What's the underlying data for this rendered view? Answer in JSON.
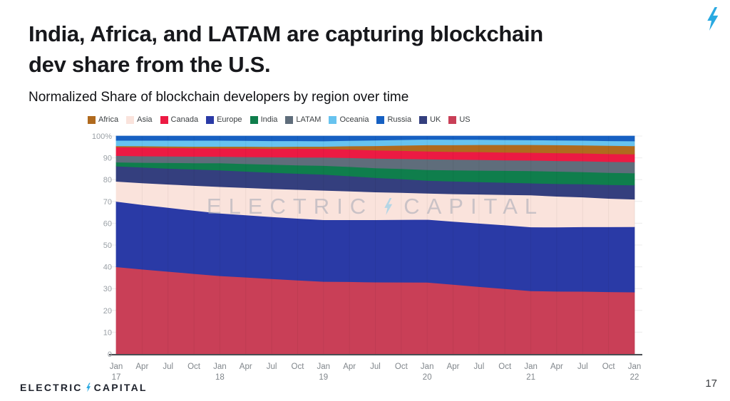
{
  "slide": {
    "title_line1": "India, Africa, and LATAM are capturing blockchain",
    "title_line2": "dev share from the U.S.",
    "subtitle": "Normalized Share of blockchain developers by region over time",
    "watermark_left": "ELECTRIC",
    "watermark_right": "CAPITAL",
    "logo_left": "ELECTRIC",
    "logo_right": "CAPITAL",
    "page_number": "17",
    "accent_bolt_color": "#29a9e1"
  },
  "chart_data": {
    "type": "area",
    "stacked": true,
    "normalized": true,
    "ylabel": "",
    "xlabel": "",
    "y_range": [
      0,
      100
    ],
    "grid": true,
    "legend_position": "top",
    "y_tick_labels": [
      "0",
      "10",
      "20",
      "30",
      "40",
      "50",
      "60",
      "70",
      "80",
      "90",
      "100%"
    ],
    "x_labels": [
      {
        "month": "Jan",
        "year": "17"
      },
      {
        "month": "Apr"
      },
      {
        "month": "Jul"
      },
      {
        "month": "Oct"
      },
      {
        "month": "Jan",
        "year": "18"
      },
      {
        "month": "Apr"
      },
      {
        "month": "Jul"
      },
      {
        "month": "Oct"
      },
      {
        "month": "Jan",
        "year": "19"
      },
      {
        "month": "Apr"
      },
      {
        "month": "Jul"
      },
      {
        "month": "Oct"
      },
      {
        "month": "Jan",
        "year": "20"
      },
      {
        "month": "Apr"
      },
      {
        "month": "Jul"
      },
      {
        "month": "Oct"
      },
      {
        "month": "Jan",
        "year": "21"
      },
      {
        "month": "Apr"
      },
      {
        "month": "Jul"
      },
      {
        "month": "Oct"
      },
      {
        "month": "Jan",
        "year": "22"
      }
    ],
    "legend_order": [
      "Africa",
      "Asia",
      "Canada",
      "Europe",
      "India",
      "LATAM",
      "Oceania",
      "Russia",
      "UK",
      "US"
    ],
    "series_bottom_to_top": [
      {
        "name": "US",
        "color": "#c93f57",
        "values": [
          40,
          39,
          38,
          37,
          36,
          35.4,
          34.7,
          34.1,
          33.4,
          33.3,
          33.1,
          33,
          32.9,
          32,
          31,
          30.1,
          29.1,
          28.9,
          28.8,
          28.6,
          28.4
        ]
      },
      {
        "name": "Europe",
        "color": "#2a3aa6",
        "values": [
          30,
          29.7,
          29.4,
          29.1,
          28.8,
          28.7,
          28.6,
          28.5,
          28.4,
          28.5,
          28.7,
          28.8,
          28.9,
          29,
          29.2,
          29.3,
          29.4,
          29.6,
          29.7,
          29.9,
          30
        ]
      },
      {
        "name": "Asia",
        "color": "#fae3dc",
        "values": [
          9.2,
          10,
          10.7,
          11.5,
          12.2,
          12.6,
          12.9,
          13.3,
          13.6,
          13.2,
          12.8,
          12.4,
          12,
          12.7,
          13.4,
          14,
          14.7,
          14.2,
          13.7,
          13.1,
          12.6
        ]
      },
      {
        "name": "UK",
        "color": "#343f7e",
        "values": [
          7,
          7.2,
          7.3,
          7.5,
          7.6,
          7.5,
          7.5,
          7.4,
          7.3,
          7,
          6.6,
          6.3,
          5.9,
          5.8,
          5.7,
          5.6,
          5.5,
          5.8,
          6,
          6.3,
          6.5
        ]
      },
      {
        "name": "India",
        "color": "#0f7e4c",
        "values": [
          1.8,
          2.2,
          2.6,
          2.9,
          3.3,
          3.5,
          3.7,
          3.9,
          4.1,
          4.3,
          4.5,
          4.7,
          4.9,
          5.1,
          5.3,
          5.5,
          5.7,
          5.7,
          5.6,
          5.6,
          5.5
        ]
      },
      {
        "name": "LATAM",
        "color": "#5f6d7b",
        "values": [
          3,
          3,
          3,
          3,
          3,
          3.2,
          3.4,
          3.6,
          3.8,
          4.1,
          4.4,
          4.6,
          4.9,
          4.9,
          4.9,
          4.8,
          4.8,
          4.9,
          5,
          5,
          5.1
        ]
      },
      {
        "name": "Canada",
        "color": "#ec1a43",
        "values": [
          4,
          4,
          3.9,
          3.9,
          3.8,
          3.9,
          3.9,
          4,
          4,
          3.9,
          3.8,
          3.7,
          3.6,
          3.6,
          3.6,
          3.6,
          3.6,
          3.6,
          3.6,
          3.6,
          3.6
        ]
      },
      {
        "name": "Africa",
        "color": "#b06a1e",
        "values": [
          0.5,
          0.6,
          0.7,
          0.7,
          0.8,
          0.9,
          0.9,
          1,
          1,
          1.5,
          2,
          2.4,
          2.9,
          3.1,
          3.3,
          3.5,
          3.6,
          3.7,
          3.7,
          3.8,
          3.8
        ]
      },
      {
        "name": "Oceania",
        "color": "#67c3ef",
        "values": [
          2.5,
          2.6,
          2.7,
          2.8,
          2.8,
          2.7,
          2.7,
          2.6,
          2.5,
          2.5,
          2.6,
          2.6,
          2.6,
          2.5,
          2.4,
          2.3,
          2.2,
          2.2,
          2.2,
          2.2,
          2.2
        ]
      },
      {
        "name": "Russia",
        "color": "#1660c2",
        "values": [
          2,
          2,
          2,
          2,
          2,
          2.1,
          2.2,
          2.2,
          2.3,
          2.1,
          1.9,
          1.7,
          1.5,
          1.6,
          1.6,
          1.7,
          1.8,
          1.9,
          2,
          2.2,
          2.3
        ]
      }
    ]
  }
}
